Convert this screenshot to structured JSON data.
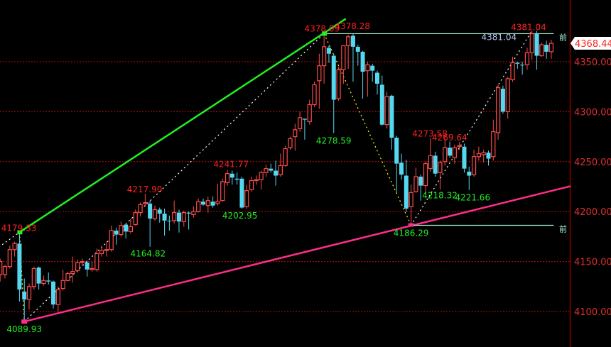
{
  "chart_data": {
    "type": "candlestick",
    "title": "",
    "ylim": [
      4080,
      4412
    ],
    "grid": "horizontal dotted",
    "colors": {
      "up": "#ff4b4b",
      "down": "#54d8f0",
      "background": "#000000",
      "axis": "#8b0000",
      "axis_text": "#e03030",
      "trend_up": "#22ee22",
      "support": "#ff2d8a",
      "level": "#a8f0d0"
    },
    "y_ticks": [
      "4350.00",
      "4300.00",
      "4250.00",
      "4200.00",
      "4150.00",
      "4100.00"
    ],
    "y_tick_values": [
      4350,
      4300,
      4250,
      4200,
      4150,
      4100
    ],
    "candles_ohlc": [
      [
        4137,
        4153,
        4130,
        4150
      ],
      [
        4137,
        4147,
        4133,
        4145
      ],
      [
        4145,
        4166,
        4143,
        4162
      ],
      [
        4162,
        4170,
        4155,
        4168
      ],
      [
        4168,
        4179.33,
        4110,
        4122
      ],
      [
        4120,
        4133,
        4089.93,
        4112
      ],
      [
        4112,
        4128,
        4102,
        4125
      ],
      [
        4125,
        4145,
        4122,
        4143
      ],
      [
        4144,
        4145,
        4122,
        4128
      ],
      [
        4128,
        4136,
        4126,
        4131
      ],
      [
        4131,
        4139,
        4127,
        4130
      ],
      [
        4130,
        4131,
        4103,
        4107
      ],
      [
        4107,
        4125,
        4100,
        4122
      ],
      [
        4123,
        4142,
        4121,
        4131
      ],
      [
        4131,
        4140,
        4130,
        4138
      ],
      [
        4138,
        4155,
        4129,
        4140
      ],
      [
        4141,
        4152,
        4139,
        4149
      ],
      [
        4149,
        4153,
        4146,
        4150
      ],
      [
        4149,
        4151,
        4135,
        4142
      ],
      [
        4142,
        4150,
        4140,
        4143
      ],
      [
        4142,
        4163,
        4140,
        4158
      ],
      [
        4158,
        4166,
        4155,
        4161
      ],
      [
        4161,
        4170,
        4155,
        4162
      ],
      [
        4162,
        4186,
        4160,
        4181
      ],
      [
        4181,
        4184,
        4167,
        4177
      ],
      [
        4177,
        4190,
        4175,
        4186
      ],
      [
        4187,
        4188,
        4173,
        4180
      ],
      [
        4180,
        4193,
        4178,
        4185
      ],
      [
        4187,
        4202,
        4186,
        4199
      ],
      [
        4199,
        4209,
        4195,
        4207
      ],
      [
        4208,
        4217.9,
        4205,
        4209
      ],
      [
        4208,
        4211,
        4164.82,
        4193
      ],
      [
        4193,
        4206,
        4191,
        4202
      ],
      [
        4202,
        4204,
        4189,
        4198
      ],
      [
        4198,
        4203,
        4176,
        4191
      ],
      [
        4191,
        4196,
        4181,
        4191
      ],
      [
        4191,
        4211,
        4188,
        4199
      ],
      [
        4199,
        4202,
        4179,
        4190
      ],
      [
        4190,
        4201,
        4185,
        4199
      ],
      [
        4199,
        4200,
        4182,
        4198
      ],
      [
        4197,
        4205,
        4194,
        4200
      ],
      [
        4200,
        4213,
        4199,
        4210
      ],
      [
        4210,
        4213,
        4206,
        4207
      ],
      [
        4206,
        4215,
        4199,
        4211
      ],
      [
        4210,
        4215,
        4204,
        4206
      ],
      [
        4208,
        4228,
        4206,
        4210
      ],
      [
        4211,
        4233,
        4210,
        4230
      ],
      [
        4229,
        4241.77,
        4226,
        4238
      ],
      [
        4238,
        4241,
        4227,
        4234
      ],
      [
        4233,
        4239,
        4227,
        4232
      ],
      [
        4233,
        4235,
        4202.95,
        4204
      ],
      [
        4205,
        4227,
        4203,
        4221
      ],
      [
        4222,
        4235,
        4220,
        4231
      ],
      [
        4231,
        4236,
        4227,
        4232
      ],
      [
        4232,
        4241,
        4222,
        4239
      ],
      [
        4239,
        4247,
        4235,
        4243
      ],
      [
        4243,
        4248,
        4239,
        4241
      ],
      [
        4241,
        4251,
        4226,
        4236
      ],
      [
        4237,
        4258,
        4235,
        4246
      ],
      [
        4246,
        4266,
        4245,
        4263
      ],
      [
        4264,
        4275,
        4262,
        4273
      ],
      [
        4275,
        4288,
        4261,
        4282
      ],
      [
        4283,
        4300,
        4280,
        4294
      ],
      [
        4293,
        4293,
        4272,
        4292
      ],
      [
        4290,
        4312,
        4287,
        4307
      ],
      [
        4307,
        4330,
        4305,
        4327
      ],
      [
        4331,
        4358,
        4303,
        4346
      ],
      [
        4346,
        4378.09,
        4328,
        4365
      ],
      [
        4364,
        4366,
        4349,
        4358
      ],
      [
        4356,
        4358,
        4278.59,
        4312
      ],
      [
        4313,
        4345,
        4311,
        4342
      ],
      [
        4342,
        4366,
        4328,
        4366
      ],
      [
        4366,
        4377,
        4343,
        4375
      ],
      [
        4376,
        4378.28,
        4330,
        4365
      ],
      [
        4365,
        4367,
        4346,
        4360
      ],
      [
        4360,
        4361,
        4313,
        4340
      ],
      [
        4341,
        4350,
        4315,
        4347
      ],
      [
        4346,
        4348,
        4330,
        4341
      ],
      [
        4339,
        4341,
        4317,
        4328
      ],
      [
        4327,
        4336,
        4286,
        4287
      ],
      [
        4287,
        4320,
        4283,
        4315
      ],
      [
        4316,
        4317,
        4262,
        4274
      ],
      [
        4274,
        4276,
        4219,
        4248
      ],
      [
        4249,
        4258,
        4232,
        4237
      ],
      [
        4236,
        4252,
        4200,
        4203
      ],
      [
        4205,
        4227,
        4186.29,
        4219
      ],
      [
        4220,
        4244,
        4219,
        4235
      ],
      [
        4235,
        4237,
        4211,
        4226
      ],
      [
        4226,
        4250,
        4218.32,
        4248
      ],
      [
        4243,
        4273.58,
        4240,
        4256
      ],
      [
        4256,
        4260,
        4235,
        4238
      ],
      [
        4239,
        4251,
        4222,
        4249
      ],
      [
        4250,
        4273,
        4246,
        4264
      ],
      [
        4264,
        4270,
        4254,
        4256
      ],
      [
        4254,
        4267,
        4248,
        4264
      ],
      [
        4265,
        4269.64,
        4262,
        4266
      ],
      [
        4265,
        4268,
        4239,
        4243
      ],
      [
        4240,
        4245,
        4221.66,
        4236
      ],
      [
        4237,
        4262,
        4235,
        4255
      ],
      [
        4255,
        4265,
        4251,
        4258
      ],
      [
        4257,
        4262,
        4249,
        4259
      ],
      [
        4259,
        4261,
        4246,
        4253
      ],
      [
        4255,
        4292,
        4251,
        4280
      ],
      [
        4279,
        4327,
        4272,
        4324
      ],
      [
        4323,
        4326,
        4298,
        4300
      ],
      [
        4300,
        4335,
        4293,
        4333
      ],
      [
        4332,
        4355,
        4330,
        4349
      ],
      [
        4349,
        4350,
        4343,
        4348
      ],
      [
        4347,
        4350,
        4337,
        4347
      ],
      [
        4347,
        4364,
        4342,
        4359
      ],
      [
        4359,
        4381.04,
        4352,
        4378
      ],
      [
        4378,
        4381,
        4342,
        4356
      ],
      [
        4356,
        4369,
        4355,
        4367
      ],
      [
        4367,
        4371,
        4353,
        4360
      ],
      [
        4360,
        4372,
        4353,
        4368.44
      ]
    ],
    "annotations": [
      {
        "text": "4179.33",
        "index": 4,
        "price": 4179.33,
        "color": "#ff2020",
        "pos": "above-left"
      },
      {
        "text": "4089.93",
        "index": 5,
        "price": 4089.93,
        "color": "#22ee22",
        "pos": "below"
      },
      {
        "text": "4164.82",
        "index": 31,
        "price": 4164.82,
        "color": "#22ee22",
        "pos": "below-left"
      },
      {
        "text": "4217.90",
        "index": 30,
        "price": 4217.9,
        "color": "#ff2020",
        "pos": "above-left"
      },
      {
        "text": "4241.77",
        "index": 47,
        "price": 4241.77,
        "color": "#ff2020",
        "pos": "above-left"
      },
      {
        "text": "4202.95",
        "index": 50,
        "price": 4202.95,
        "color": "#22ee22",
        "pos": "below-left"
      },
      {
        "text": "4378.09",
        "index": 67,
        "price": 4378.09,
        "color": "#ff2020",
        "pos": "above-left"
      },
      {
        "text": "4378.28",
        "index": 73,
        "price": 4378.28,
        "color": "#ff2020",
        "pos": "above-left"
      },
      {
        "text": "4278.59",
        "index": 69,
        "price": 4278.59,
        "color": "#22ee22",
        "pos": "below"
      },
      {
        "text": "4186.29",
        "index": 85,
        "price": 4186.29,
        "color": "#22ee22",
        "pos": "below"
      },
      {
        "text": "4273.58",
        "index": 89,
        "price": 4273.58,
        "color": "#ff2020",
        "pos": "above-left"
      },
      {
        "text": "4269.64",
        "index": 95,
        "price": 4269.64,
        "color": "#ff2020",
        "pos": "above-left"
      },
      {
        "text": "4218.32",
        "index": 88,
        "price": 4218.32,
        "color": "#22ee22",
        "pos": "below"
      },
      {
        "text": "4221.66",
        "index": 97,
        "price": 4221.66,
        "color": "#22ee22",
        "pos": "below"
      },
      {
        "text": "4381.04",
        "index": 110,
        "price": 4381.04,
        "color": "#ff2020",
        "pos": "above-left"
      },
      {
        "text": "4381.04",
        "index": 102,
        "price": 4378.09,
        "color": "#b8c8f0",
        "pos": "below-left"
      }
    ],
    "trend_lines": [
      {
        "kind": "solid",
        "color": "#22ee22",
        "from": [
          4,
          4179.33
        ],
        "to": [
          71.5,
          4393
        ]
      },
      {
        "kind": "solid",
        "color": "#ff2d8a",
        "from": [
          5,
          4089.93
        ],
        "to": [
          118,
          4225.5
        ]
      },
      {
        "kind": "dashed",
        "color": "#ffffff",
        "from": [
          -1,
          4162
        ],
        "to": [
          4,
          4179.33
        ]
      },
      {
        "kind": "dashed",
        "color": "#ffffff",
        "from": [
          5,
          4089.93
        ],
        "to": [
          67,
          4378.09
        ]
      },
      {
        "kind": "dashed",
        "color": "#ffff00",
        "from": [
          4,
          4179.33
        ],
        "to": [
          5,
          4089.93
        ]
      },
      {
        "kind": "dashed",
        "color": "#ffff00",
        "from": [
          67,
          4378.09
        ],
        "to": [
          85,
          4186.29
        ]
      },
      {
        "kind": "dashed",
        "color": "#ffffff",
        "from": [
          85,
          4186.29
        ],
        "to": [
          110,
          4381.04
        ]
      },
      {
        "kind": "level",
        "color": "#a8f0d0",
        "from": [
          67,
          4378.09
        ],
        "to": [
          114.5,
          4378.09
        ]
      },
      {
        "kind": "level",
        "color": "#a8f0d0",
        "from": [
          85,
          4186.29
        ],
        "to": [
          114.5,
          4186.29
        ]
      }
    ],
    "level_tags": [
      {
        "text": "前",
        "price": 4378.09
      },
      {
        "text": "前",
        "price": 4186.29
      }
    ],
    "current_price": "4368.44",
    "current_price_value": 4368.44
  }
}
